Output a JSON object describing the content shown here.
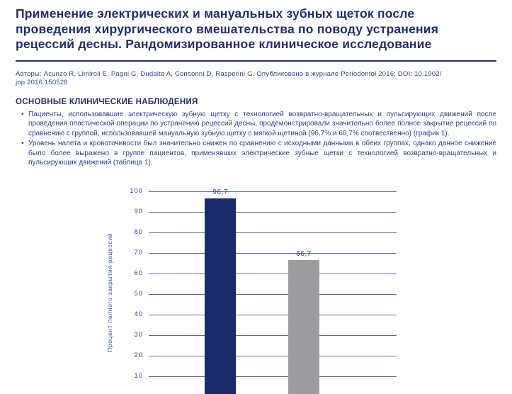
{
  "header": {
    "title_lines": [
      "Применение электрических и мануальных зубных щеток после",
      "проведения хирургического вмешательства по поводу устранения",
      "рецессий десны. Рандомизированное клиническое исследование"
    ],
    "authors_lines": [
      "Авторы: Acunzo R, Limiroli E, Pagni G, Dudaite A, Consonni D, Rasperini G. Опубликовано в журнале Periodontol 2016; DOI: 10.1902/",
      "jop.2016.150528"
    ]
  },
  "main": {
    "section_heading": "ОСНОВНЫЕ КЛИНИЧЕСКИЕ НАБЛЮДЕНИЯ",
    "bullets": [
      "Пациенты, использовавшие электрическую зубную щетку с технологией возвратно-вращательных и пульсирующих движений после проведения пластической операции по устранению рецессий десны, продемонстрировали значительно более полное закрытие рецессий по сравнению с группой, использовавшей мануальную зубную щетку с мягкой щетиной (96,7% и 66,7% соотвественно) (график 1).",
      "Уровень налета и кровоточивости был значительно снижен по сравнению с исходными данными в обеих группах, однако данное снижение было более выражено в группе пациентов, применявших электрические зубные щетки с технологией возвратно-вращательных и пульсирующих движений (таблица 1)."
    ]
  },
  "chart_data": {
    "type": "bar",
    "title": "",
    "ylabel": "Процент полного закрытия рецессий",
    "ylim": [
      0,
      100
    ],
    "yticks": [
      100,
      90,
      80,
      70,
      60,
      50,
      40,
      30,
      20,
      10
    ],
    "grid": true,
    "legend": false,
    "bars": [
      {
        "value": 96.7,
        "label": "96,7",
        "color": "#1b2a6b"
      },
      {
        "value": 66.7,
        "label": "66,7",
        "color": "#9d9d9f"
      }
    ]
  },
  "colors": {
    "title_navy": "#202d6e",
    "body_blue": "#2e3e8f",
    "gridline": "#5a69a0",
    "bar_navy": "#1b2a6b",
    "bar_gray": "#9d9d9f"
  }
}
